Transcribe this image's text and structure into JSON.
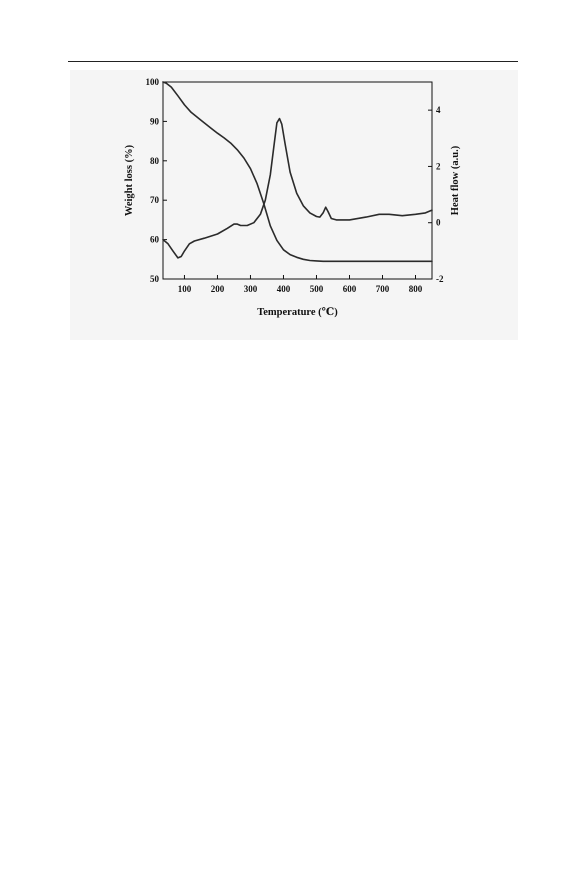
{
  "chart_data": {
    "type": "line",
    "title": "",
    "xlabel": "Temperature (℃)",
    "ylabel_left": "Weight loss (%)",
    "ylabel_right": "Heat flow (a.u.)",
    "xlim": [
      35,
      850
    ],
    "ylim_left": [
      50,
      100
    ],
    "ylim_right": [
      -2,
      5
    ],
    "x_ticks": [
      100,
      200,
      300,
      400,
      500,
      600,
      700,
      800
    ],
    "y_left_ticks": [
      50,
      60,
      70,
      80,
      90,
      100
    ],
    "y_right_ticks": [
      -2,
      0,
      2,
      4
    ],
    "grid": false,
    "legend": "none",
    "colors": {
      "line": "#2b2b2b",
      "axis": "#111111",
      "panel": "#f5f5f5"
    },
    "series": [
      {
        "axis": "left",
        "x": [
          35,
          45,
          60,
          80,
          100,
          120,
          150,
          180,
          200,
          220,
          240,
          260,
          280,
          300,
          320,
          340,
          360,
          380,
          400,
          420,
          440,
          460,
          480,
          500,
          520,
          550,
          600,
          700,
          800,
          850
        ],
        "y": [
          100,
          99.7,
          98.7,
          96.5,
          94.2,
          92.3,
          90.3,
          88.3,
          87,
          85.8,
          84.5,
          82.8,
          80.7,
          78,
          74.2,
          69.2,
          63.5,
          59.8,
          57.4,
          56.2,
          55.5,
          55,
          54.7,
          54.6,
          54.5,
          54.5,
          54.5,
          54.5,
          54.5,
          54.5
        ]
      },
      {
        "axis": "right",
        "x": [
          35,
          50,
          65,
          80,
          90,
          100,
          115,
          130,
          160,
          200,
          230,
          250,
          260,
          270,
          290,
          310,
          330,
          345,
          360,
          372,
          380,
          388,
          395,
          405,
          420,
          440,
          460,
          480,
          500,
          510,
          520,
          528,
          535,
          545,
          560,
          600,
          650,
          690,
          720,
          760,
          800,
          830,
          850
        ],
        "y": [
          -0.6,
          -0.75,
          -1,
          -1.25,
          -1.2,
          -1,
          -0.75,
          -0.65,
          -0.55,
          -0.4,
          -0.2,
          -0.05,
          -0.05,
          -0.1,
          -0.1,
          0,
          0.3,
          0.8,
          1.7,
          2.8,
          3.55,
          3.7,
          3.5,
          2.8,
          1.8,
          1.05,
          0.6,
          0.35,
          0.22,
          0.2,
          0.35,
          0.55,
          0.4,
          0.15,
          0.1,
          0.1,
          0.2,
          0.3,
          0.3,
          0.25,
          0.3,
          0.35,
          0.45
        ]
      }
    ]
  }
}
